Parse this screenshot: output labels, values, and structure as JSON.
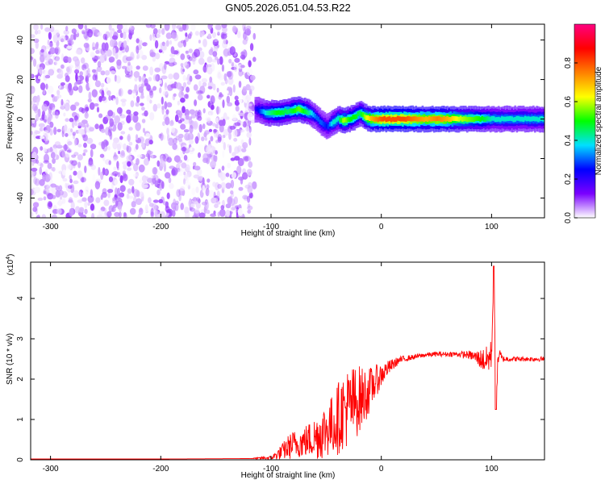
{
  "title": "GN05.2026.051.04.53.R22",
  "chart_data": [
    {
      "type": "heatmap",
      "xlabel": "Height of straight line (km)",
      "ylabel": "Frequency (Hz)",
      "xlim": [
        -318,
        148
      ],
      "ylim": [
        -50,
        48
      ],
      "xticks": [
        -300,
        -200,
        -100,
        0,
        100
      ],
      "yticks": [
        -40,
        -20,
        0,
        20,
        40
      ],
      "colorbar": {
        "label": "Normalized spectral amplitude",
        "range": [
          0,
          1
        ],
        "ticks": [
          "0.0",
          "0.2",
          "0.4",
          "0.6",
          "0.8"
        ],
        "tick_values": [
          0,
          0.2,
          0.4,
          0.6,
          0.8
        ],
        "colormap": [
          "#ffffff",
          "#7a00ff",
          "#0000ff",
          "#00e0ff",
          "#00ff00",
          "#ffff00",
          "#ff8000",
          "#ff0000",
          "#ff0080"
        ]
      },
      "noise_region": {
        "x": [
          -318,
          -115
        ],
        "freq": [
          -50,
          48
        ],
        "amplitude": [
          0.0,
          0.1
        ]
      },
      "ridge": {
        "x": [
          -115,
          -105,
          -95,
          -85,
          -75,
          -65,
          -60,
          -55,
          -50,
          -45,
          -40,
          -35,
          -30,
          -25,
          -20,
          -15,
          -10,
          -5,
          0,
          10,
          20,
          30,
          40,
          50,
          60,
          70,
          80,
          90,
          95,
          100,
          105,
          110,
          120,
          130,
          148
        ],
        "freq": [
          5,
          3,
          3,
          4,
          5,
          3,
          1,
          -2,
          -4,
          -2,
          0,
          -1,
          0,
          1,
          3,
          1,
          0,
          0,
          0,
          0,
          0,
          0,
          0,
          0,
          0,
          0,
          0,
          0,
          0,
          0,
          0,
          0,
          0,
          0,
          0
        ],
        "amplitude": [
          0.2,
          0.4,
          0.5,
          0.45,
          0.55,
          0.4,
          0.3,
          0.3,
          0.25,
          0.4,
          0.4,
          0.6,
          0.5,
          0.5,
          0.45,
          0.6,
          0.7,
          0.75,
          0.8,
          0.8,
          0.8,
          0.75,
          0.7,
          0.75,
          0.7,
          0.6,
          0.55,
          0.5,
          0.45,
          0.4,
          0.4,
          0.4,
          0.4,
          0.4,
          0.4
        ]
      }
    },
    {
      "type": "line",
      "xlabel": "Height of straight line (km)",
      "ylabel": "SNR (10 * v/v)",
      "y_multiplier": "(x10",
      "y_multiplier_exp": "4",
      "y_multiplier_close": ")",
      "xlim": [
        -318,
        148
      ],
      "ylim": [
        0,
        4.9
      ],
      "xticks": [
        -300,
        -200,
        -100,
        0,
        100
      ],
      "yticks": [
        0,
        1,
        2,
        3,
        4
      ],
      "series": [
        {
          "color": "#ff0000",
          "x": [
            -318,
            -200,
            -120,
            -100,
            -95,
            -90,
            -85,
            -80,
            -75,
            -70,
            -65,
            -60,
            -55,
            -50,
            -45,
            -40,
            -35,
            -30,
            -25,
            -20,
            -15,
            -10,
            -5,
            0,
            5,
            10,
            15,
            20,
            30,
            40,
            50,
            60,
            70,
            80,
            85,
            90,
            95,
            100,
            102,
            104,
            106,
            110,
            120,
            130,
            140,
            148
          ],
          "y": [
            0.02,
            0.02,
            0.03,
            0.05,
            0.12,
            0.2,
            0.3,
            0.38,
            0.4,
            0.45,
            0.5,
            0.55,
            0.65,
            0.75,
            0.85,
            1.0,
            1.2,
            1.3,
            1.4,
            1.5,
            1.6,
            1.75,
            1.95,
            2.1,
            2.25,
            2.35,
            2.45,
            2.5,
            2.55,
            2.6,
            2.62,
            2.62,
            2.62,
            2.6,
            2.55,
            2.5,
            2.45,
            2.6,
            4.8,
            1.3,
            2.6,
            2.5,
            2.5,
            2.5,
            2.5,
            2.5
          ],
          "spread": [
            0.0,
            0.0,
            0.0,
            0.05,
            0.12,
            0.2,
            0.3,
            0.35,
            0.35,
            0.4,
            0.45,
            0.55,
            0.65,
            0.7,
            0.75,
            0.9,
            0.95,
            1.0,
            0.95,
            0.85,
            0.7,
            0.55,
            0.4,
            0.3,
            0.2,
            0.15,
            0.1,
            0.08,
            0.06,
            0.06,
            0.06,
            0.06,
            0.07,
            0.1,
            0.15,
            0.25,
            0.35,
            0.4,
            0.0,
            0.0,
            0.3,
            0.08,
            0.06,
            0.06,
            0.06,
            0.06
          ]
        }
      ]
    }
  ]
}
